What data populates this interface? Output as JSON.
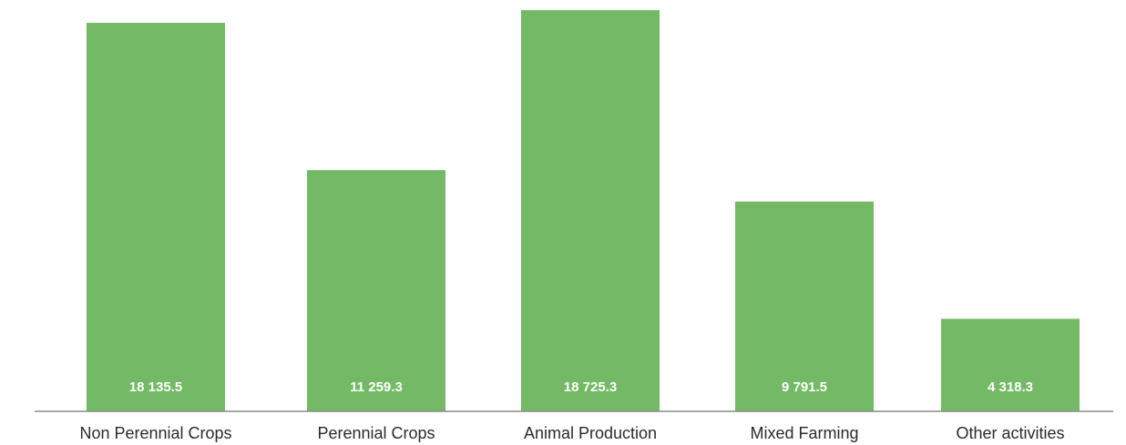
{
  "chart_data": {
    "type": "bar",
    "title": "",
    "xlabel": "",
    "ylabel": "",
    "categories": [
      "Non Perennial Crops",
      "Perennial Crops",
      "Animal Production",
      "Mixed Farming",
      "Other activities"
    ],
    "values": [
      18135.5,
      11259.3,
      18725.3,
      9791.5,
      4318.3
    ],
    "value_labels": [
      "18 135.5",
      "11 259.3",
      "18 725.3",
      "9 791.5",
      "4 318.3"
    ],
    "ylim": [
      0,
      19200
    ],
    "grid": false,
    "legend": "none",
    "bar_color": "#74b965",
    "axis_color": "#8c8c8c",
    "value_label_color": "#ffffff",
    "category_label_color": "#2b2b2b"
  }
}
